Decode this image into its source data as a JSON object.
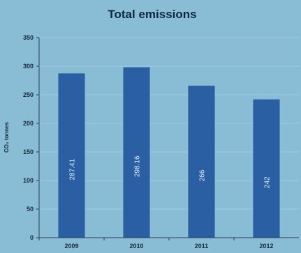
{
  "chart_data": {
    "type": "bar",
    "title": "Total emissions",
    "xlabel": "",
    "ylabel": "CO₂ tonnes",
    "categories": [
      "2009",
      "2010",
      "2011",
      "2012"
    ],
    "values": [
      287.41,
      298.16,
      266,
      242
    ],
    "value_labels": [
      "287.41",
      "298.16",
      "266",
      "242"
    ],
    "ylim": [
      0,
      350
    ],
    "yticks": [
      0,
      50,
      100,
      150,
      200,
      250,
      300,
      350
    ],
    "grid": true,
    "legend": "none",
    "colors": {
      "background": "#89bdd6",
      "bar": "#2a5fa3",
      "grid": "#9fcbe0",
      "axis": "#2a3f55",
      "title": "#0e2740"
    }
  }
}
